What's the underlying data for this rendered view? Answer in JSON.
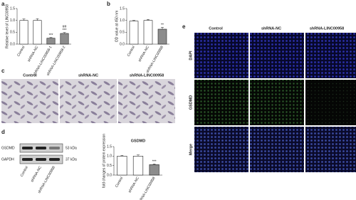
{
  "chart_data": [
    {
      "type": "bar",
      "ylabel": "Relative level of LINC00958",
      "categories": [
        "Control",
        "shRNA-NC",
        "shRNA-LINC00958-1",
        "shRNA-LINC00958-2"
      ],
      "values": [
        1.0,
        1.0,
        0.25,
        0.45
      ],
      "errors": [
        0.06,
        0.07,
        0.03,
        0.04
      ],
      "colors": [
        "#ffffff",
        "#ffffff",
        "#8c8c8c",
        "#8c8c8c"
      ],
      "annotations": [
        null,
        null,
        [
          "***"
        ],
        [
          "##",
          "***"
        ]
      ],
      "ylim": [
        0,
        1.5
      ],
      "yticks": [
        {
          "value": 0,
          "label": "0.0"
        },
        0.5,
        {
          "value": 1,
          "label": "1.0"
        },
        1.5
      ]
    },
    {
      "type": "bar",
      "ylabel": "OD value at 450 nm",
      "categories": [
        "Control",
        "shRNA-NC",
        "shRNA-LINC00958"
      ],
      "values": [
        0.97,
        1.0,
        0.63
      ],
      "errors": [
        0.03,
        0.04,
        0.08
      ],
      "colors": [
        "#ffffff",
        "#ffffff",
        "#8c8c8c"
      ],
      "annotations": [
        null,
        null,
        [
          "**"
        ]
      ],
      "ylim": [
        0,
        1.5
      ],
      "yticks": [
        {
          "value": 0,
          "label": "0.0"
        },
        0.5,
        {
          "value": 1,
          "label": "1.0"
        },
        1.5
      ]
    },
    {
      "type": "bar",
      "title": "GSDMD",
      "ylabel": "fold changes of protein expression",
      "categories": [
        "Control",
        "shRNA-NC",
        "shRNA-LINC00958"
      ],
      "values": [
        1.0,
        1.0,
        0.55
      ],
      "errors": [
        0.04,
        0.06,
        0.04
      ],
      "colors": [
        "#ffffff",
        "#ffffff",
        "#8c8c8c"
      ],
      "annotations": [
        null,
        null,
        [
          "***"
        ]
      ],
      "ylim": [
        0,
        1.5
      ],
      "yticks": [
        {
          "value": 0,
          "label": "0.0"
        },
        0.5,
        {
          "value": 1,
          "label": "1.0"
        },
        1.5
      ]
    }
  ],
  "panel_labels": [
    "a",
    "b",
    "c",
    "d",
    "e"
  ],
  "cell_images": {
    "columns": [
      "Control",
      "shRNA-NC",
      "shRNA-LINC00958"
    ]
  },
  "western_blot": {
    "proteins": [
      "GSDMD",
      "GAPDH"
    ],
    "sizes": [
      "53 kDa",
      "37 kDa"
    ],
    "lanes": [
      "Control",
      "shRNA-NC",
      "shRNA-LINC00958"
    ]
  },
  "fluorescence": {
    "columns": [
      "Control",
      "shRNA-NC",
      "shRNA-LINC00958"
    ],
    "rows": [
      "DAPI",
      "GSDMD",
      "Merge"
    ]
  }
}
